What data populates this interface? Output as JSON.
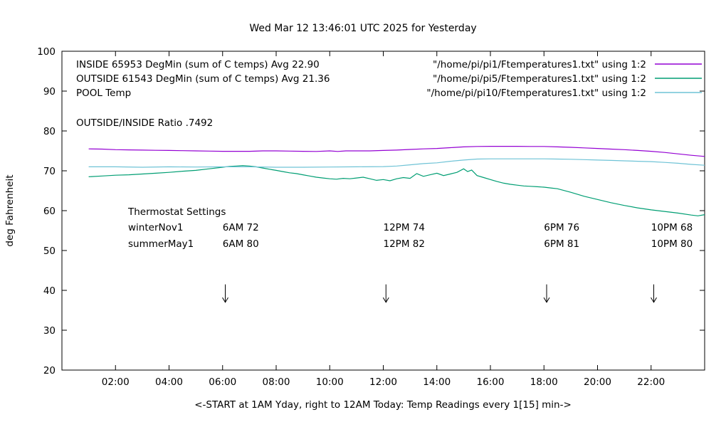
{
  "title": "Wed Mar 12 13:46:01 UTC 2025 for Yesterday",
  "ratio_text": "OUTSIDE/INSIDE Ratio .7492",
  "legend": {
    "entries": [
      {
        "label": "INSIDE 65953 DegMin (sum of C temps) Avg 22.90",
        "file": "\"/home/pi/pi1/Ftemperatures1.txt\" using 1:2",
        "color": "#9400d3"
      },
      {
        "label": "OUTSIDE 61543 DegMin (sum of C temps) Avg 21.36",
        "file": "\"/home/pi/pi5/Ftemperatures1.txt\" using 1:2",
        "color": "#009e73"
      },
      {
        "label": "POOL Temp",
        "file": "\"/home/pi/pi10/Ftemperatures1.txt\" using 1:2",
        "color": "#6fc3d6"
      }
    ]
  },
  "thermostat": {
    "heading": "Thermostat Settings",
    "setting_times": [
      6,
      12,
      18,
      22
    ],
    "rows": [
      {
        "season": "winterNov1",
        "settings": [
          "6AM 72",
          "12PM 74",
          "6PM 76",
          "10PM 68"
        ]
      },
      {
        "season": "summerMay1",
        "settings": [
          "6AM 80",
          "12PM 82",
          "6PM 81",
          "10PM 80"
        ]
      }
    ]
  },
  "chart_data": {
    "type": "line",
    "title": "Wed Mar 12 13:46:01 UTC 2025 for Yesterday",
    "xlabel": "<-START at 1AM Yday, right to 12AM Today:  Temp Readings every 1[15] min->",
    "ylabel": "deg Fahrenheit",
    "xlim": [
      0,
      24
    ],
    "ylim": [
      20,
      100
    ],
    "grid": false,
    "legend_position": "top-inside",
    "x_ticks": [
      {
        "value": 2,
        "label": "02:00"
      },
      {
        "value": 4,
        "label": "04:00"
      },
      {
        "value": 6,
        "label": "06:00"
      },
      {
        "value": 8,
        "label": "08:00"
      },
      {
        "value": 10,
        "label": "10:00"
      },
      {
        "value": 12,
        "label": "12:00"
      },
      {
        "value": 14,
        "label": "14:00"
      },
      {
        "value": 16,
        "label": "16:00"
      },
      {
        "value": 18,
        "label": "18:00"
      },
      {
        "value": 20,
        "label": "20:00"
      },
      {
        "value": 22,
        "label": "22:00"
      }
    ],
    "y_ticks": [
      20,
      30,
      40,
      50,
      60,
      70,
      80,
      90,
      100
    ],
    "arrow_times": [
      6.1,
      12.1,
      18.1,
      22.1
    ],
    "series": [
      {
        "name": "INSIDE",
        "color": "#9400d3",
        "points": [
          [
            1,
            75.5
          ],
          [
            1.5,
            75.45
          ],
          [
            2,
            75.3
          ],
          [
            2.5,
            75.25
          ],
          [
            3,
            75.2
          ],
          [
            3.5,
            75.15
          ],
          [
            4,
            75.1
          ],
          [
            4.5,
            75.05
          ],
          [
            5,
            75.0
          ],
          [
            5.5,
            74.95
          ],
          [
            6,
            74.9
          ],
          [
            6.5,
            74.9
          ],
          [
            7,
            74.9
          ],
          [
            7.5,
            75.0
          ],
          [
            8,
            75.0
          ],
          [
            8.5,
            74.95
          ],
          [
            9,
            74.9
          ],
          [
            9.5,
            74.85
          ],
          [
            10,
            75.0
          ],
          [
            10.3,
            74.85
          ],
          [
            10.6,
            75.0
          ],
          [
            11,
            75.0
          ],
          [
            11.5,
            75.0
          ],
          [
            12,
            75.1
          ],
          [
            12.5,
            75.2
          ],
          [
            13,
            75.35
          ],
          [
            13.5,
            75.5
          ],
          [
            14,
            75.6
          ],
          [
            14.5,
            75.8
          ],
          [
            15,
            76.0
          ],
          [
            15.5,
            76.1
          ],
          [
            16,
            76.15
          ],
          [
            16.5,
            76.15
          ],
          [
            17,
            76.15
          ],
          [
            17.5,
            76.1
          ],
          [
            18,
            76.1
          ],
          [
            18.5,
            76.0
          ],
          [
            19,
            75.9
          ],
          [
            19.5,
            75.75
          ],
          [
            20,
            75.6
          ],
          [
            20.5,
            75.45
          ],
          [
            21,
            75.3
          ],
          [
            21.5,
            75.1
          ],
          [
            22,
            74.9
          ],
          [
            22.5,
            74.6
          ],
          [
            23,
            74.25
          ],
          [
            23.5,
            73.9
          ],
          [
            24,
            73.6
          ]
        ]
      },
      {
        "name": "OUTSIDE",
        "color": "#009e73",
        "points": [
          [
            1,
            68.5
          ],
          [
            1.5,
            68.7
          ],
          [
            2,
            68.9
          ],
          [
            2.5,
            69.0
          ],
          [
            3,
            69.2
          ],
          [
            3.5,
            69.4
          ],
          [
            4,
            69.6
          ],
          [
            4.5,
            69.9
          ],
          [
            5,
            70.1
          ],
          [
            5.5,
            70.5
          ],
          [
            6,
            70.9
          ],
          [
            6.25,
            71.1
          ],
          [
            6.5,
            71.2
          ],
          [
            6.75,
            71.3
          ],
          [
            7,
            71.2
          ],
          [
            7.25,
            71.0
          ],
          [
            7.5,
            70.7
          ],
          [
            7.75,
            70.4
          ],
          [
            8,
            70.1
          ],
          [
            8.25,
            69.8
          ],
          [
            8.5,
            69.5
          ],
          [
            8.75,
            69.3
          ],
          [
            9,
            69.0
          ],
          [
            9.25,
            68.7
          ],
          [
            9.5,
            68.4
          ],
          [
            9.75,
            68.2
          ],
          [
            10,
            68.0
          ],
          [
            10.25,
            67.9
          ],
          [
            10.5,
            68.1
          ],
          [
            10.75,
            68.0
          ],
          [
            11,
            68.2
          ],
          [
            11.25,
            68.4
          ],
          [
            11.5,
            68.0
          ],
          [
            11.75,
            67.6
          ],
          [
            12,
            67.8
          ],
          [
            12.25,
            67.5
          ],
          [
            12.5,
            68.0
          ],
          [
            12.75,
            68.3
          ],
          [
            13,
            68.1
          ],
          [
            13.25,
            69.3
          ],
          [
            13.5,
            68.6
          ],
          [
            13.75,
            69.0
          ],
          [
            14,
            69.4
          ],
          [
            14.25,
            68.8
          ],
          [
            14.5,
            69.2
          ],
          [
            14.75,
            69.6
          ],
          [
            15,
            70.5
          ],
          [
            15.15,
            69.8
          ],
          [
            15.3,
            70.2
          ],
          [
            15.5,
            68.8
          ],
          [
            15.75,
            68.3
          ],
          [
            16,
            67.8
          ],
          [
            16.25,
            67.3
          ],
          [
            16.5,
            66.9
          ],
          [
            16.75,
            66.6
          ],
          [
            17,
            66.4
          ],
          [
            17.25,
            66.2
          ],
          [
            17.5,
            66.1
          ],
          [
            17.75,
            66.0
          ],
          [
            18,
            65.9
          ],
          [
            18.25,
            65.7
          ],
          [
            18.5,
            65.5
          ],
          [
            19,
            64.6
          ],
          [
            19.5,
            63.6
          ],
          [
            20,
            62.8
          ],
          [
            20.5,
            62.0
          ],
          [
            21,
            61.3
          ],
          [
            21.5,
            60.7
          ],
          [
            22,
            60.2
          ],
          [
            22.5,
            59.8
          ],
          [
            23,
            59.4
          ],
          [
            23.5,
            58.9
          ],
          [
            23.75,
            58.7
          ],
          [
            24,
            59.0
          ]
        ]
      },
      {
        "name": "POOL",
        "color": "#6fc3d6",
        "points": [
          [
            1,
            71.0
          ],
          [
            2,
            71.0
          ],
          [
            3,
            70.9
          ],
          [
            4,
            71.0
          ],
          [
            5,
            70.95
          ],
          [
            6,
            71.0
          ],
          [
            7,
            71.0
          ],
          [
            8,
            70.9
          ],
          [
            9,
            70.9
          ],
          [
            10,
            70.95
          ],
          [
            11,
            71.0
          ],
          [
            12,
            71.05
          ],
          [
            12.5,
            71.2
          ],
          [
            13,
            71.5
          ],
          [
            13.5,
            71.8
          ],
          [
            14,
            72.0
          ],
          [
            14.5,
            72.4
          ],
          [
            15,
            72.7
          ],
          [
            15.5,
            72.95
          ],
          [
            16,
            73.0
          ],
          [
            16.5,
            73.0
          ],
          [
            17,
            73.0
          ],
          [
            17.5,
            73.0
          ],
          [
            18,
            73.0
          ],
          [
            18.5,
            72.95
          ],
          [
            19,
            72.9
          ],
          [
            19.5,
            72.8
          ],
          [
            20,
            72.7
          ],
          [
            20.5,
            72.6
          ],
          [
            21,
            72.5
          ],
          [
            21.5,
            72.4
          ],
          [
            22,
            72.3
          ],
          [
            22.5,
            72.1
          ],
          [
            23,
            71.9
          ],
          [
            23.5,
            71.6
          ],
          [
            24,
            71.4
          ]
        ]
      }
    ]
  }
}
